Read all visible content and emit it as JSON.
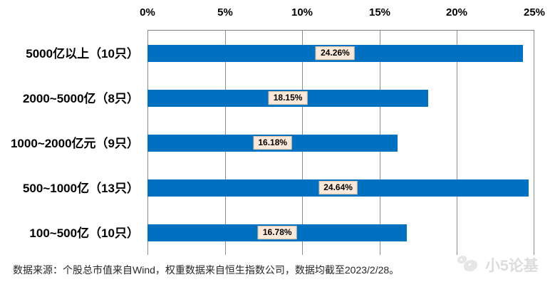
{
  "chart_data": {
    "type": "bar",
    "orientation": "horizontal",
    "title": "",
    "xlabel": "",
    "ylabel": "",
    "categories": [
      "5000亿以上（10只）",
      "2000~5000亿（8只）",
      "1000~2000亿元（9只）",
      "500~1000亿（13只）",
      "100~500亿（10只）"
    ],
    "values": [
      24.26,
      18.15,
      16.18,
      24.64,
      16.78
    ],
    "value_labels": [
      "24.26%",
      "18.15%",
      "16.18%",
      "24.64%",
      "16.78%"
    ],
    "x_ticks": [
      "0%",
      "5%",
      "10%",
      "15%",
      "20%",
      "25%"
    ],
    "xlim": [
      0,
      25
    ],
    "grid": true,
    "legend": "none",
    "colors": {
      "bar": "#0070C0",
      "value_label_bg": "#FDE9D9",
      "value_label_text": "#000000",
      "gridline": "#8c8c8c",
      "plot_top_border": "#7f7f7f"
    }
  },
  "footer": {
    "source_note": "数据来源：个股总市值来自Wind，权重数据来自恒生指数公司，数据均截至2023/2/28。"
  },
  "watermark": {
    "text": "小5论基",
    "logo": "chat-bubbles-mascot"
  }
}
